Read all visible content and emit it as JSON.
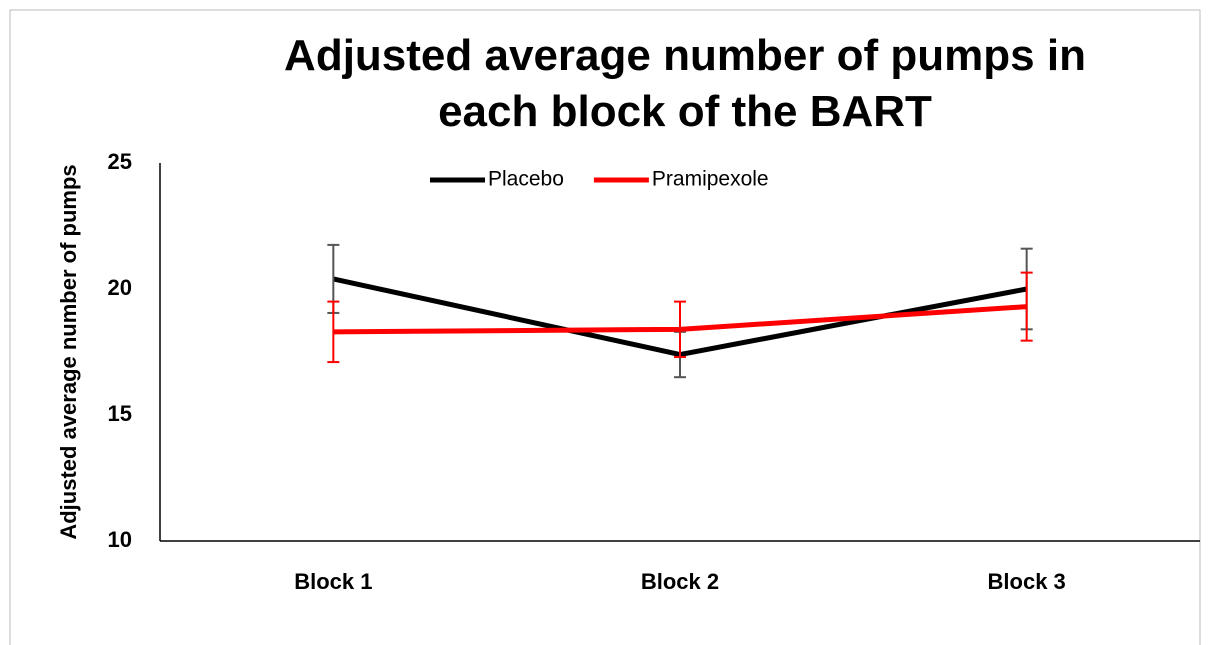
{
  "chart_data": {
    "type": "line",
    "title": "Adjusted average number of pumps in each block of the BART",
    "ylabel": "Adjusted average number of pumps",
    "categories": [
      "Block 1",
      "Block 2",
      "Block 3"
    ],
    "series": [
      {
        "name": "Placebo",
        "color": "#000000",
        "values": [
          20.4,
          17.4,
          20.0
        ],
        "errors": [
          1.35,
          0.9,
          1.6
        ]
      },
      {
        "name": "Pramipexole",
        "color": "#ff0000",
        "values": [
          18.3,
          18.4,
          19.3
        ],
        "errors": [
          1.2,
          1.1,
          1.35
        ]
      }
    ],
    "ylim": [
      10,
      25
    ],
    "yticks": [
      10,
      15,
      20,
      25
    ],
    "grid": false,
    "legend": "top"
  }
}
